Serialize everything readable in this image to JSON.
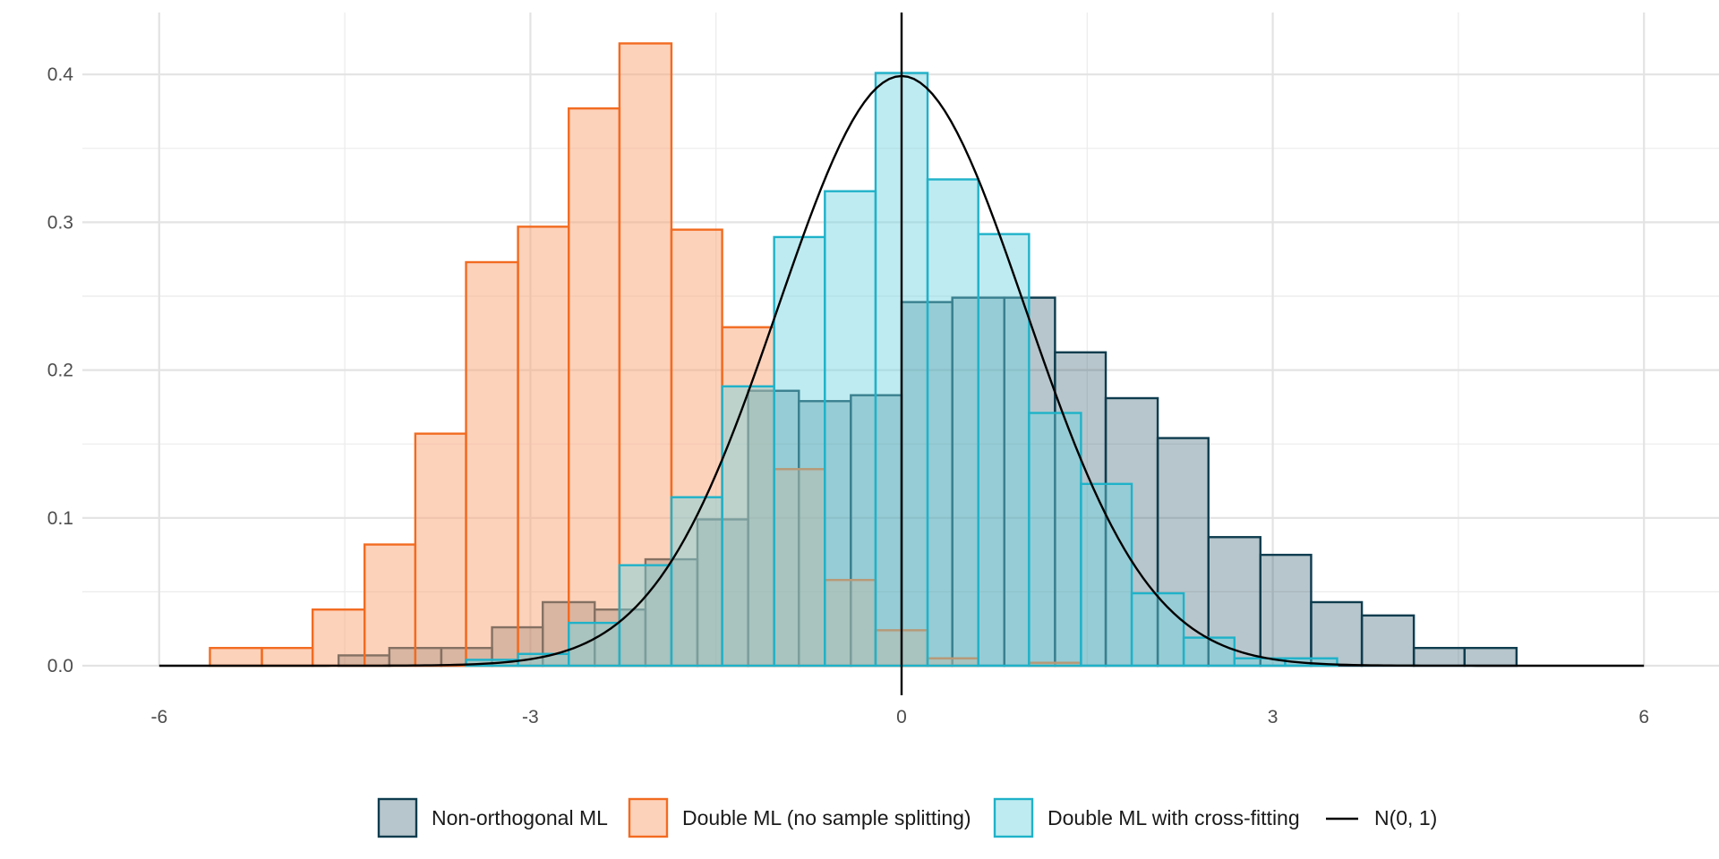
{
  "chart_data": {
    "type": "histogram",
    "title": "",
    "xlabel": "",
    "ylabel": "",
    "xlim": [
      -6.2,
      6.2
    ],
    "ylim": [
      0,
      0.42
    ],
    "x_ticks": [
      -6,
      -3,
      0,
      3,
      6
    ],
    "x_tick_labels": [
      "-6",
      "-3",
      "0",
      "3",
      "6"
    ],
    "y_ticks": [
      0.0,
      0.1,
      0.2,
      0.3,
      0.4
    ],
    "y_tick_labels": [
      "0.0",
      "0.1",
      "0.2",
      "0.3",
      "0.4"
    ],
    "grid": true,
    "legend_position": "bottom",
    "vline_x": 0,
    "bin_width": 0.414,
    "series": [
      {
        "name": "Non-orthogonal ML",
        "fill": "#1f4e5f",
        "stroke": "#0e3c4e",
        "bins": [
          {
            "x0": -4.55,
            "x1": -4.14,
            "y": 0.007
          },
          {
            "x0": -4.14,
            "x1": -3.72,
            "y": 0.012
          },
          {
            "x0": -3.72,
            "x1": -3.31,
            "y": 0.012
          },
          {
            "x0": -3.31,
            "x1": -2.9,
            "y": 0.026
          },
          {
            "x0": -2.9,
            "x1": -2.48,
            "y": 0.043
          },
          {
            "x0": -2.48,
            "x1": -2.07,
            "y": 0.038
          },
          {
            "x0": -2.07,
            "x1": -1.65,
            "y": 0.072
          },
          {
            "x0": -1.65,
            "x1": -1.24,
            "y": 0.099
          },
          {
            "x0": -1.24,
            "x1": -0.83,
            "y": 0.186
          },
          {
            "x0": -0.83,
            "x1": -0.41,
            "y": 0.179
          },
          {
            "x0": -0.41,
            "x1": 0.0,
            "y": 0.183
          },
          {
            "x0": 0.0,
            "x1": 0.41,
            "y": 0.246
          },
          {
            "x0": 0.41,
            "x1": 0.83,
            "y": 0.249
          },
          {
            "x0": 0.83,
            "x1": 1.24,
            "y": 0.249
          },
          {
            "x0": 1.24,
            "x1": 1.65,
            "y": 0.212
          },
          {
            "x0": 1.65,
            "x1": 2.07,
            "y": 0.181
          },
          {
            "x0": 2.07,
            "x1": 2.48,
            "y": 0.154
          },
          {
            "x0": 2.48,
            "x1": 2.9,
            "y": 0.087
          },
          {
            "x0": 2.9,
            "x1": 3.31,
            "y": 0.075
          },
          {
            "x0": 3.31,
            "x1": 3.72,
            "y": 0.043
          },
          {
            "x0": 3.72,
            "x1": 4.14,
            "y": 0.034
          },
          {
            "x0": 4.14,
            "x1": 4.55,
            "y": 0.012
          },
          {
            "x0": 4.55,
            "x1": 4.97,
            "y": 0.012
          }
        ]
      },
      {
        "name": "Double ML (no sample splitting)",
        "fill": "#fca577",
        "stroke": "#f26b21",
        "bins": [
          {
            "x0": -5.59,
            "x1": -5.17,
            "y": 0.012
          },
          {
            "x0": -5.17,
            "x1": -4.76,
            "y": 0.012
          },
          {
            "x0": -4.76,
            "x1": -4.34,
            "y": 0.038
          },
          {
            "x0": -4.34,
            "x1": -3.93,
            "y": 0.082
          },
          {
            "x0": -3.93,
            "x1": -3.52,
            "y": 0.157
          },
          {
            "x0": -3.52,
            "x1": -3.1,
            "y": 0.273
          },
          {
            "x0": -3.1,
            "x1": -2.69,
            "y": 0.297
          },
          {
            "x0": -2.69,
            "x1": -2.28,
            "y": 0.377
          },
          {
            "x0": -2.28,
            "x1": -1.86,
            "y": 0.421
          },
          {
            "x0": -1.86,
            "x1": -1.45,
            "y": 0.295
          },
          {
            "x0": -1.45,
            "x1": -1.03,
            "y": 0.229
          },
          {
            "x0": -1.03,
            "x1": -0.62,
            "y": 0.133
          },
          {
            "x0": -0.62,
            "x1": -0.21,
            "y": 0.058
          },
          {
            "x0": -0.21,
            "x1": 0.21,
            "y": 0.024
          },
          {
            "x0": 0.21,
            "x1": 0.62,
            "y": 0.005
          },
          {
            "x0": 0.62,
            "x1": 1.03,
            "y": 0.0
          },
          {
            "x0": 1.03,
            "x1": 1.45,
            "y": 0.002
          }
        ]
      },
      {
        "name": "Double ML with cross-fitting",
        "fill": "#6fd3df",
        "stroke": "#1fb2c9",
        "bins": [
          {
            "x0": -3.52,
            "x1": -3.1,
            "y": 0.004
          },
          {
            "x0": -3.1,
            "x1": -2.69,
            "y": 0.008
          },
          {
            "x0": -2.69,
            "x1": -2.28,
            "y": 0.029
          },
          {
            "x0": -2.28,
            "x1": -1.86,
            "y": 0.068
          },
          {
            "x0": -1.86,
            "x1": -1.45,
            "y": 0.114
          },
          {
            "x0": -1.45,
            "x1": -1.03,
            "y": 0.189
          },
          {
            "x0": -1.03,
            "x1": -0.62,
            "y": 0.29
          },
          {
            "x0": -0.62,
            "x1": -0.21,
            "y": 0.321
          },
          {
            "x0": -0.21,
            "x1": 0.21,
            "y": 0.401
          },
          {
            "x0": 0.21,
            "x1": 0.62,
            "y": 0.329
          },
          {
            "x0": 0.62,
            "x1": 1.03,
            "y": 0.292
          },
          {
            "x0": 1.03,
            "x1": 1.45,
            "y": 0.171
          },
          {
            "x0": 1.45,
            "x1": 1.86,
            "y": 0.123
          },
          {
            "x0": 1.86,
            "x1": 2.28,
            "y": 0.049
          },
          {
            "x0": 2.28,
            "x1": 2.69,
            "y": 0.019
          },
          {
            "x0": 2.69,
            "x1": 3.1,
            "y": 0.005
          },
          {
            "x0": 3.1,
            "x1": 3.52,
            "y": 0.005
          }
        ]
      },
      {
        "name": "N(0, 1)",
        "type": "line",
        "stroke": "#000000",
        "x_range": [
          -6,
          6
        ],
        "function": "standard-normal-density"
      }
    ]
  }
}
